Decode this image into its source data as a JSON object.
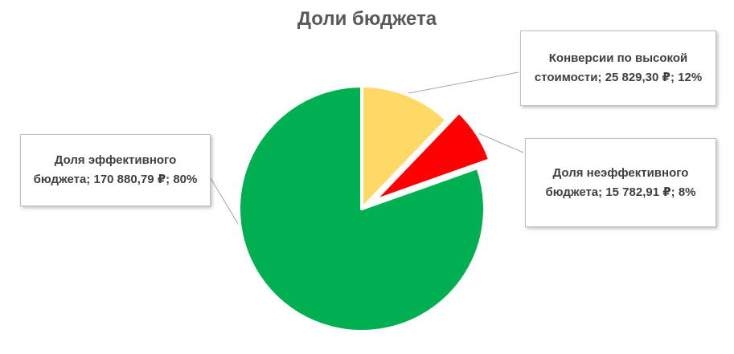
{
  "chart_data": {
    "type": "pie",
    "title": "Доли бюджета",
    "slices": [
      {
        "name": "Конверсии по высокой стоимости",
        "value": 25829.3,
        "percent": 12,
        "color": "#FFD966",
        "exploded": false,
        "label": "Конверсии по высокой стоимости; 25 829,30 ₽; 12%"
      },
      {
        "name": "Доля неэффективного бюджета",
        "value": 15782.91,
        "percent": 8,
        "color": "#FF0000",
        "exploded": true,
        "label": "Доля неэффективного бюджета; 15 782,91 ₽; 8%"
      },
      {
        "name": "Доля эффективного бюджета",
        "value": 170880.79,
        "percent": 80,
        "color": "#00B050",
        "exploded": false,
        "label": "Доля эффективного бюджета; 170 880,79 ₽; 80%"
      }
    ],
    "legend": "none",
    "data_labels": "callouts"
  }
}
